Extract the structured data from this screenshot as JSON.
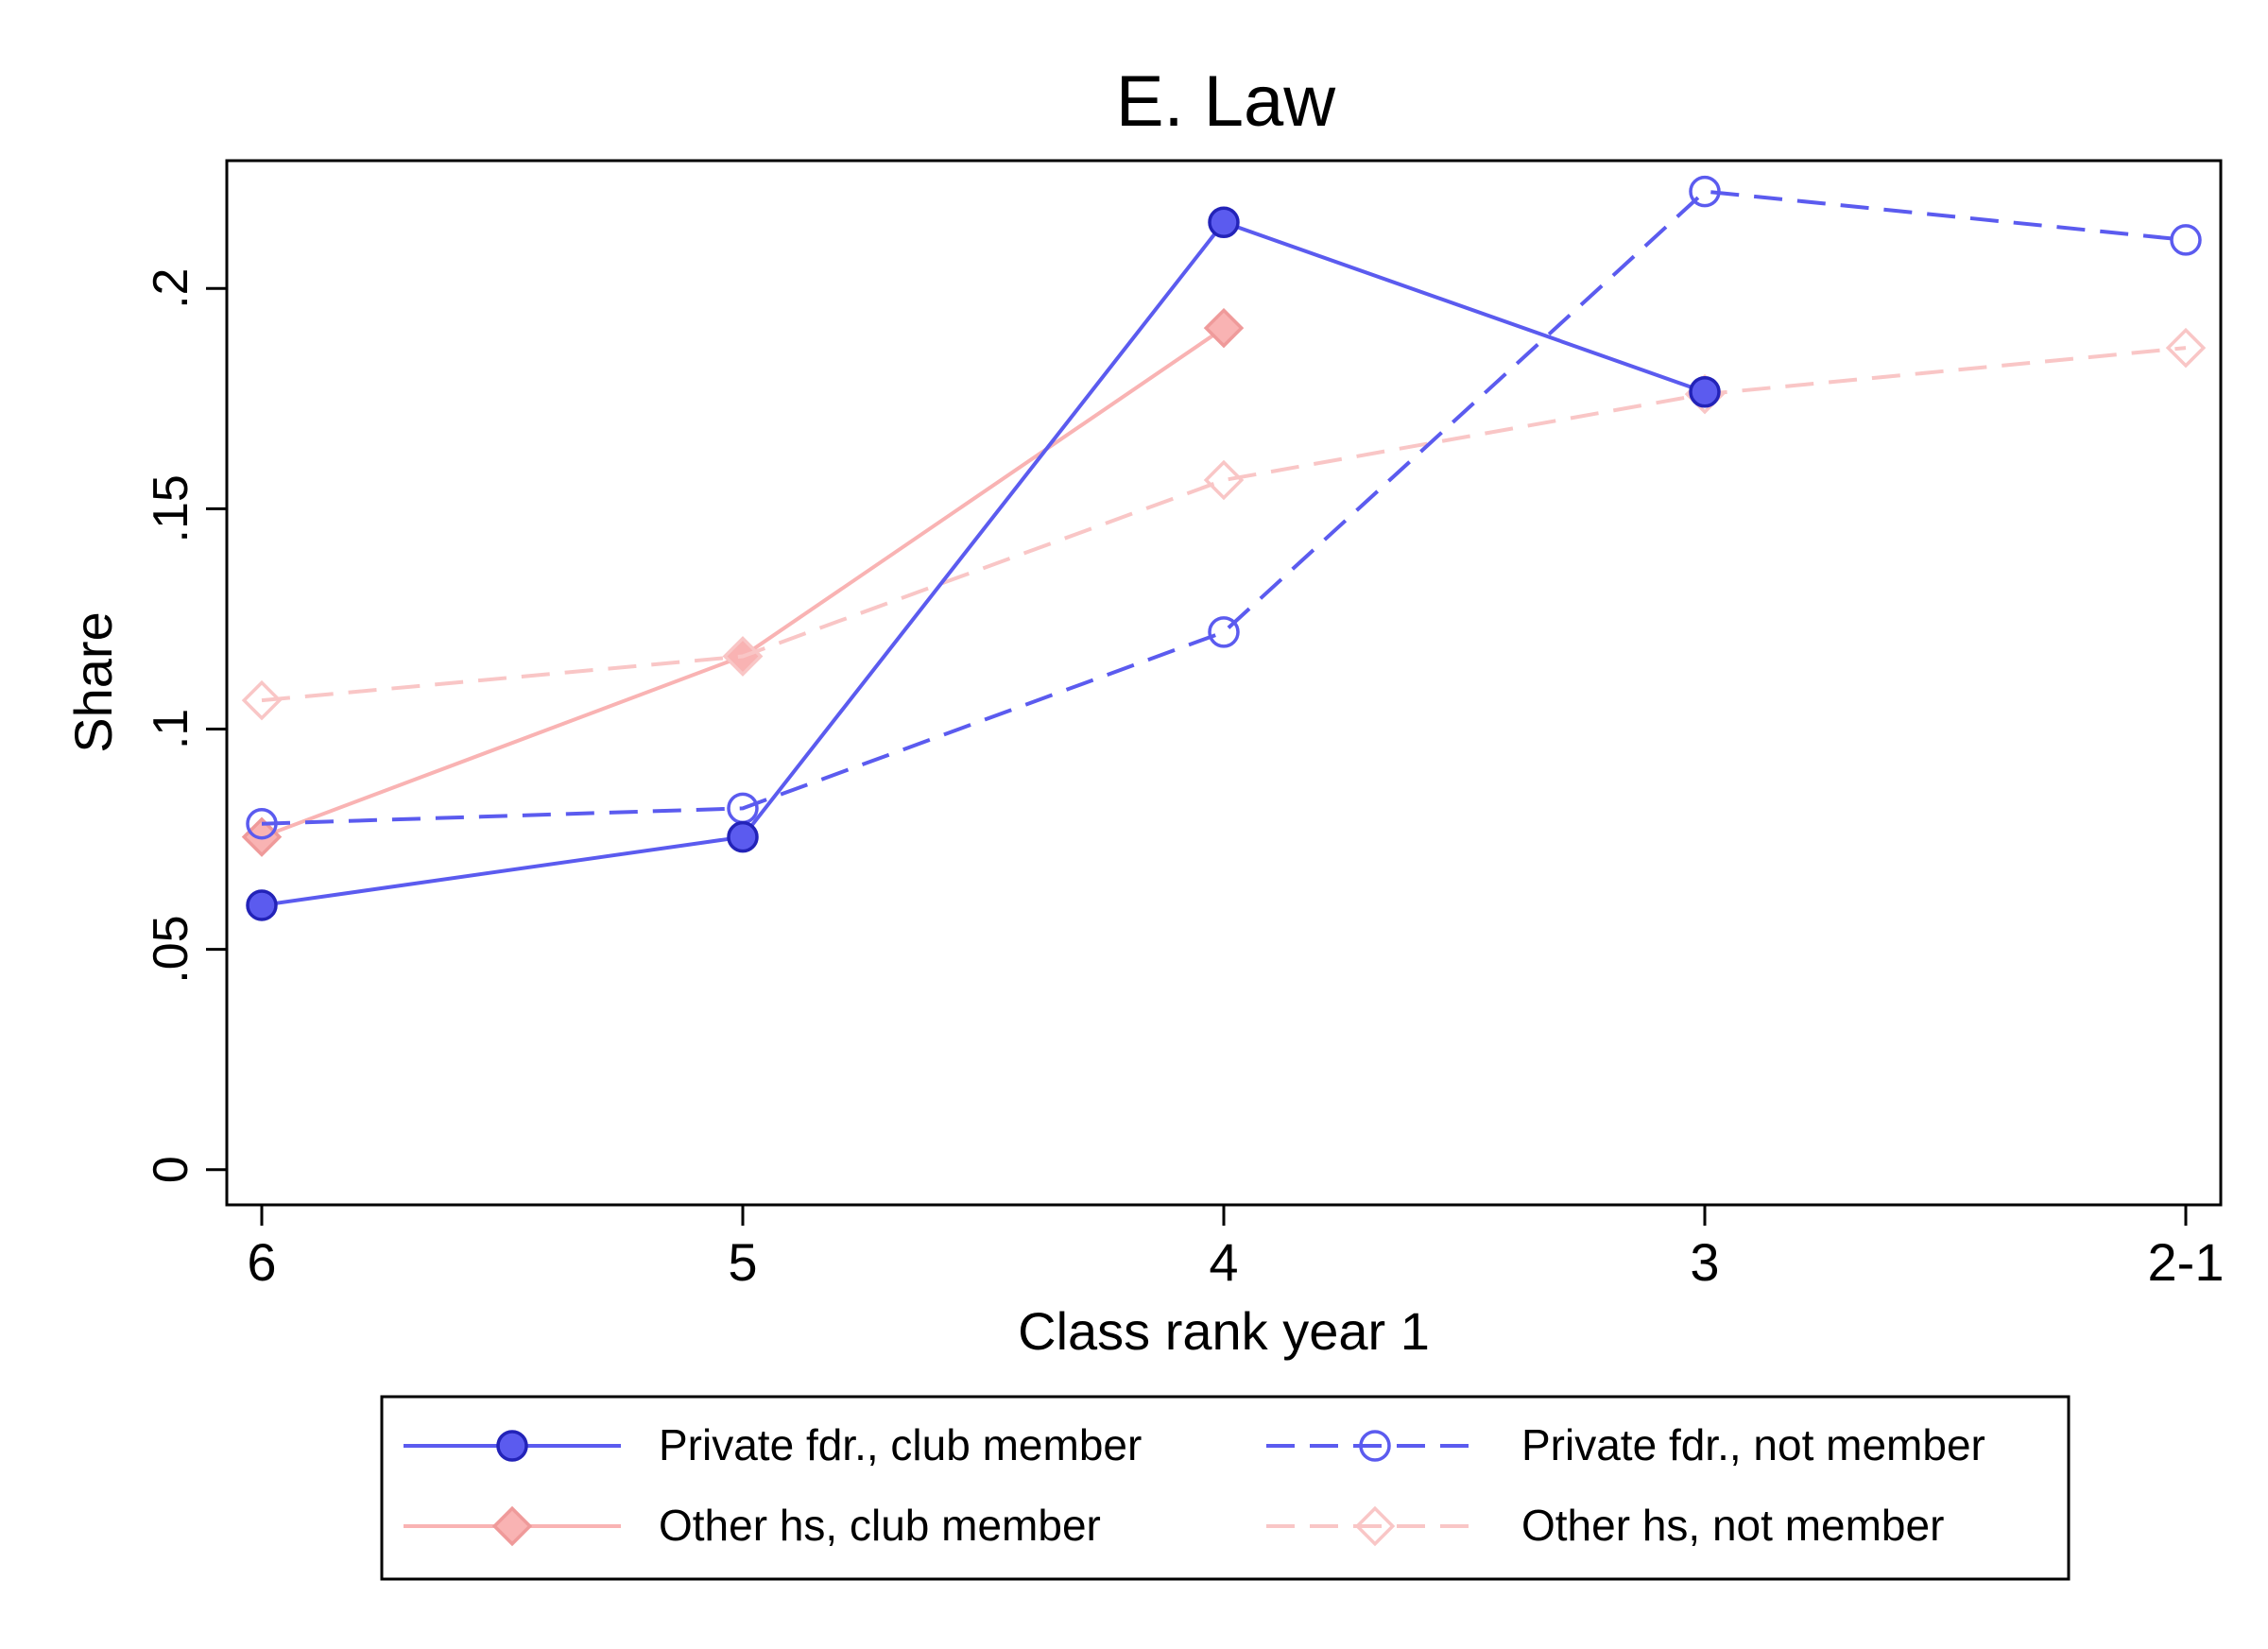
{
  "chart_data": {
    "type": "line",
    "title": "E. Law",
    "xlabel": "Class rank year 1",
    "ylabel": "Share",
    "categories": [
      "6",
      "5",
      "4",
      "3",
      "2-1"
    ],
    "yticks": [
      {
        "value": 0,
        "label": "0"
      },
      {
        "value": 0.05,
        "label": ".05"
      },
      {
        "value": 0.1,
        "label": ".1"
      },
      {
        "value": 0.15,
        "label": ".15"
      },
      {
        "value": 0.2,
        "label": ".2"
      }
    ],
    "ylim": [
      -0.008,
      0.229
    ],
    "grid": false,
    "legend_position": "bottom",
    "series": [
      {
        "name": "Private fdr., club member",
        "values": [
          0.06,
          0.0755,
          0.215,
          0.1765,
          null
        ],
        "color": "#5b5bef",
        "marker": "circle",
        "filled": true,
        "dashed": false
      },
      {
        "name": "Private fdr., not member",
        "values": [
          0.0785,
          0.082,
          0.122,
          0.222,
          0.211
        ],
        "color": "#5b5bef",
        "marker": "circle",
        "filled": false,
        "dashed": true
      },
      {
        "name": "Other hs, club member",
        "values": [
          0.0755,
          0.1165,
          0.191,
          null,
          null
        ],
        "color": "#f9b3b3",
        "marker": "diamond",
        "filled": true,
        "dashed": false
      },
      {
        "name": "Other hs, not member",
        "values": [
          0.1065,
          0.1165,
          0.1565,
          0.176,
          0.1865
        ],
        "color": "#f9c6c6",
        "marker": "diamond",
        "filled": false,
        "dashed": true
      }
    ]
  }
}
